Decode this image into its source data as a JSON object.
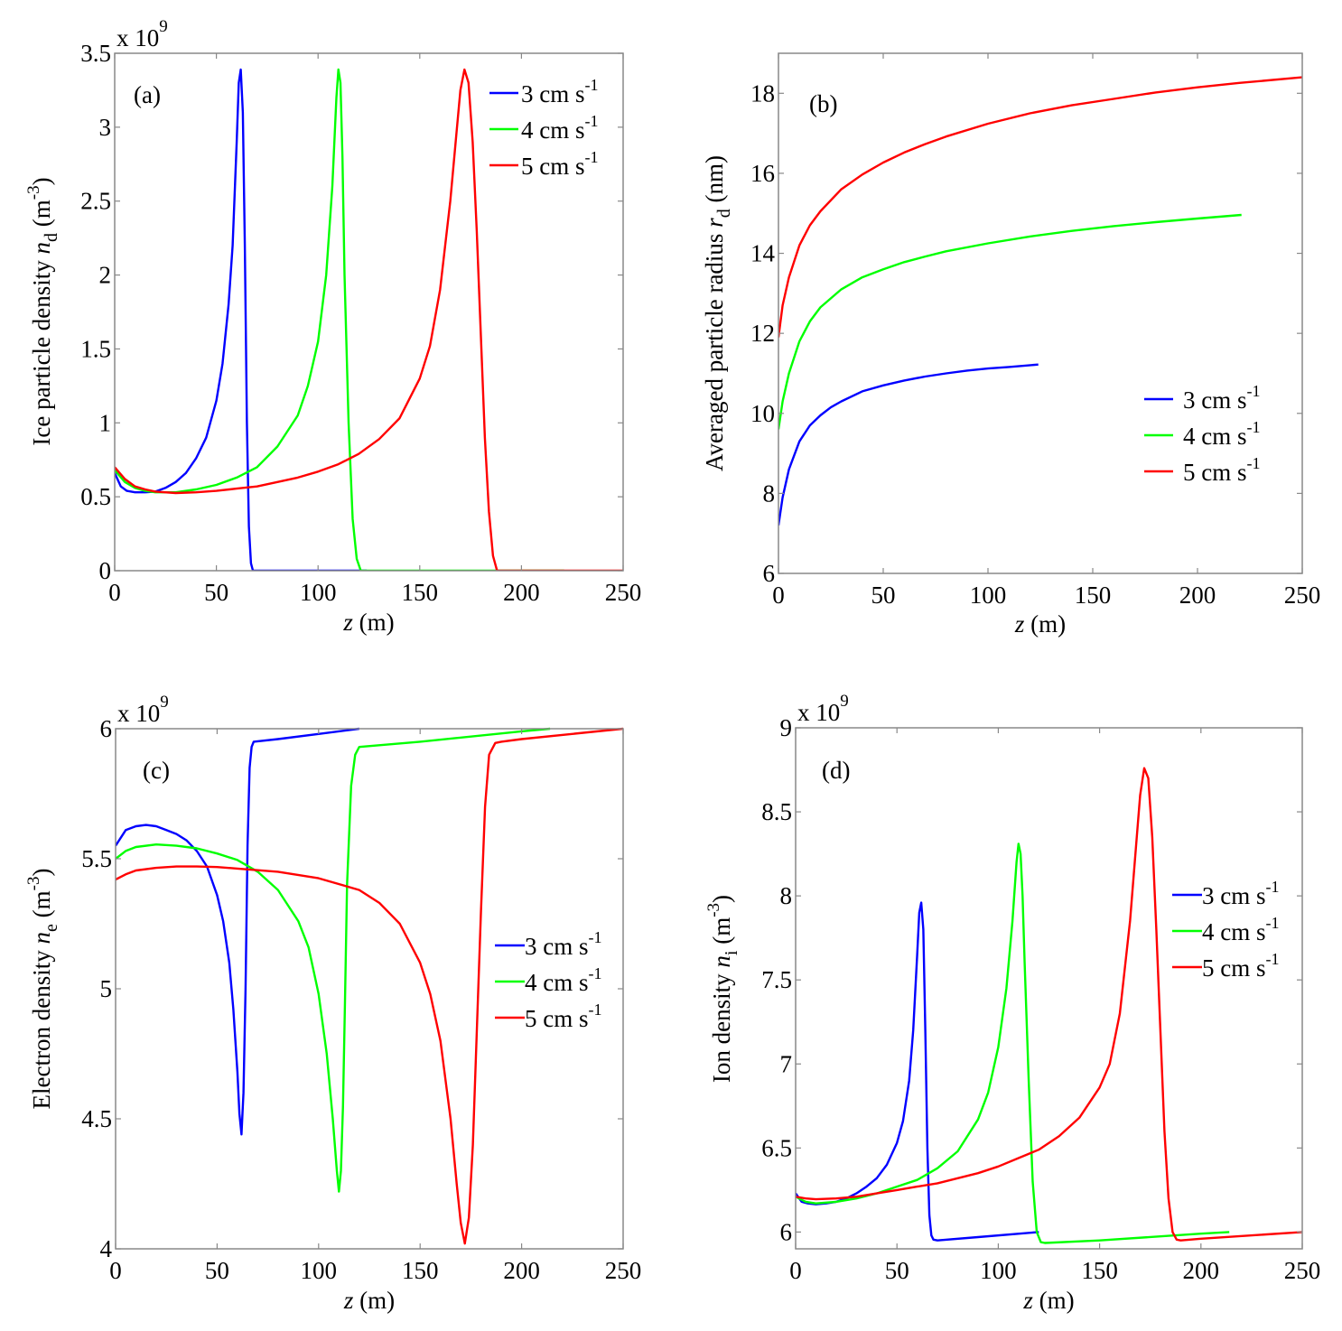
{
  "chart_data": [
    {
      "type": "line",
      "panel": "(a)",
      "title": "",
      "xlabel": "z (m)",
      "xlabel_italic": "z",
      "xlabel_rest": " (m)",
      "ylabel_parts": [
        "Ice particle density ",
        "n",
        "d",
        " (m",
        "-3",
        ")"
      ],
      "y_exponent": "x 10",
      "y_exponent_power": "9",
      "xlim": [
        0,
        250
      ],
      "ylim": [
        0,
        3.5
      ],
      "xticks": [
        0,
        50,
        100,
        150,
        200,
        250
      ],
      "yticks": [
        0,
        0.5,
        1,
        1.5,
        2,
        2.5,
        3,
        3.5
      ],
      "ytick_labels": [
        "0",
        "0.5",
        "1",
        "1.5",
        "2",
        "2.5",
        "3",
        "3.5"
      ],
      "grid": false,
      "legend_position": "top-right",
      "series": [
        {
          "name": "3 cm s-1",
          "label_main": "3 cm s",
          "label_sup": "-1",
          "color": "#0000ff",
          "x": [
            0,
            3,
            6,
            10,
            15,
            20,
            25,
            30,
            35,
            40,
            45,
            50,
            53,
            56,
            58,
            60,
            61,
            62,
            63,
            64,
            65,
            66,
            67,
            68,
            70,
            80,
            100,
            124
          ],
          "y": [
            0.66,
            0.57,
            0.54,
            0.53,
            0.53,
            0.535,
            0.56,
            0.6,
            0.66,
            0.76,
            0.9,
            1.15,
            1.4,
            1.8,
            2.2,
            2.9,
            3.3,
            3.39,
            3.1,
            2.2,
            1.0,
            0.3,
            0.05,
            0.0,
            0.0,
            0.0,
            0.0,
            0.0
          ]
        },
        {
          "name": "4 cm s-1",
          "label_main": "4 cm s",
          "label_sup": "-1",
          "color": "#00ff00",
          "x": [
            0,
            5,
            10,
            15,
            20,
            30,
            40,
            50,
            60,
            70,
            80,
            90,
            95,
            100,
            104,
            107,
            109,
            110,
            111,
            112,
            113,
            115,
            117,
            119,
            121,
            130,
            160,
            200,
            221
          ],
          "y": [
            0.68,
            0.6,
            0.56,
            0.54,
            0.53,
            0.53,
            0.55,
            0.58,
            0.63,
            0.7,
            0.84,
            1.05,
            1.25,
            1.55,
            2.0,
            2.6,
            3.2,
            3.39,
            3.3,
            2.8,
            2.0,
            1.0,
            0.35,
            0.08,
            0.0,
            0.0,
            0.0,
            0.0,
            0.0
          ]
        },
        {
          "name": "5 cm s-1",
          "label_main": "5 cm s",
          "label_sup": "-1",
          "color": "#ff0000",
          "x": [
            0,
            5,
            10,
            15,
            20,
            30,
            40,
            50,
            60,
            70,
            80,
            90,
            100,
            110,
            120,
            130,
            140,
            150,
            155,
            160,
            165,
            168,
            170,
            172,
            174,
            176,
            178,
            180,
            182,
            184,
            186,
            188,
            200,
            250
          ],
          "y": [
            0.7,
            0.62,
            0.57,
            0.55,
            0.535,
            0.525,
            0.53,
            0.54,
            0.555,
            0.57,
            0.6,
            0.63,
            0.67,
            0.72,
            0.79,
            0.89,
            1.03,
            1.3,
            1.52,
            1.9,
            2.5,
            2.95,
            3.25,
            3.39,
            3.3,
            2.9,
            2.3,
            1.6,
            0.9,
            0.4,
            0.1,
            0.0,
            0.0,
            0.0
          ]
        }
      ]
    },
    {
      "type": "line",
      "panel": "(b)",
      "title": "",
      "xlabel": "z (m)",
      "xlabel_italic": "z",
      "xlabel_rest": " (m)",
      "ylabel_parts": [
        "Averaged particle radius ",
        "r",
        "d",
        " (nm)",
        "",
        ""
      ],
      "y_exponent": "",
      "y_exponent_power": "",
      "xlim": [
        0,
        250
      ],
      "ylim": [
        6,
        19
      ],
      "xticks": [
        0,
        50,
        100,
        150,
        200,
        250
      ],
      "yticks": [
        6,
        8,
        10,
        12,
        14,
        16,
        18
      ],
      "ytick_labels": [
        "6",
        "8",
        "10",
        "12",
        "14",
        "16",
        "18"
      ],
      "grid": false,
      "legend_position": "lower-right",
      "series": [
        {
          "name": "3 cm s-1",
          "label_main": "3 cm s",
          "label_sup": "-1",
          "color": "#0000ff",
          "x": [
            0,
            2,
            5,
            10,
            15,
            20,
            25,
            30,
            40,
            50,
            60,
            70,
            80,
            90,
            100,
            110,
            124
          ],
          "y": [
            7.2,
            7.9,
            8.6,
            9.3,
            9.7,
            9.95,
            10.15,
            10.3,
            10.55,
            10.7,
            10.82,
            10.92,
            11.0,
            11.07,
            11.12,
            11.16,
            11.22
          ]
        },
        {
          "name": "4 cm s-1",
          "label_main": "4 cm s",
          "label_sup": "-1",
          "color": "#00ff00",
          "x": [
            0,
            2,
            5,
            10,
            15,
            20,
            30,
            40,
            50,
            60,
            70,
            80,
            100,
            120,
            140,
            160,
            180,
            200,
            221
          ],
          "y": [
            9.6,
            10.3,
            11.0,
            11.8,
            12.3,
            12.65,
            13.1,
            13.4,
            13.6,
            13.78,
            13.92,
            14.05,
            14.25,
            14.42,
            14.56,
            14.68,
            14.78,
            14.87,
            14.96
          ]
        },
        {
          "name": "5 cm s-1",
          "label_main": "5 cm s",
          "label_sup": "-1",
          "color": "#ff0000",
          "x": [
            0,
            2,
            5,
            10,
            15,
            20,
            30,
            40,
            50,
            60,
            70,
            80,
            100,
            120,
            140,
            160,
            180,
            200,
            220,
            250
          ],
          "y": [
            11.9,
            12.7,
            13.4,
            14.2,
            14.7,
            15.05,
            15.6,
            15.97,
            16.27,
            16.52,
            16.73,
            16.92,
            17.24,
            17.5,
            17.7,
            17.86,
            18.02,
            18.15,
            18.26,
            18.4
          ]
        }
      ]
    },
    {
      "type": "line",
      "panel": "(c)",
      "title": "",
      "xlabel": "z (m)",
      "xlabel_italic": "z",
      "xlabel_rest": " (m)",
      "ylabel_parts": [
        "Electron density ",
        "n",
        "e",
        " (m",
        "-3",
        ")"
      ],
      "y_exponent": "x 10",
      "y_exponent_power": "9",
      "xlim": [
        0,
        250
      ],
      "ylim": [
        4,
        6
      ],
      "xticks": [
        0,
        50,
        100,
        150,
        200,
        250
      ],
      "yticks": [
        4,
        4.5,
        5,
        5.5,
        6
      ],
      "ytick_labels": [
        "4",
        "4.5",
        "5",
        "5.5",
        "6"
      ],
      "grid": false,
      "legend_position": "center-right",
      "series": [
        {
          "name": "3 cm s-1",
          "label_main": "3 cm s",
          "label_sup": "-1",
          "color": "#0000ff",
          "x": [
            0,
            5,
            10,
            15,
            20,
            25,
            30,
            35,
            40,
            45,
            50,
            53,
            56,
            58,
            60,
            61,
            62,
            63,
            64,
            65,
            66,
            67,
            68,
            80,
            100,
            120
          ],
          "y": [
            5.55,
            5.61,
            5.625,
            5.63,
            5.625,
            5.61,
            5.595,
            5.57,
            5.53,
            5.47,
            5.36,
            5.26,
            5.1,
            4.92,
            4.68,
            4.52,
            4.44,
            4.6,
            5.0,
            5.55,
            5.85,
            5.93,
            5.95,
            5.96,
            5.98,
            6.0
          ]
        },
        {
          "name": "4 cm s-1",
          "label_main": "4 cm s",
          "label_sup": "-1",
          "color": "#00ff00",
          "x": [
            0,
            5,
            10,
            20,
            30,
            40,
            50,
            60,
            70,
            80,
            90,
            95,
            100,
            104,
            107,
            109,
            110,
            111,
            112,
            113,
            114,
            116,
            118,
            120,
            150,
            200,
            214
          ],
          "y": [
            5.5,
            5.53,
            5.545,
            5.555,
            5.55,
            5.54,
            5.52,
            5.495,
            5.45,
            5.38,
            5.26,
            5.16,
            4.98,
            4.75,
            4.5,
            4.3,
            4.22,
            4.3,
            4.55,
            4.95,
            5.4,
            5.78,
            5.9,
            5.93,
            5.95,
            5.99,
            6.0
          ]
        },
        {
          "name": "5 cm s-1",
          "label_main": "5 cm s",
          "label_sup": "-1",
          "color": "#ff0000",
          "x": [
            0,
            5,
            10,
            20,
            30,
            40,
            50,
            60,
            80,
            100,
            120,
            130,
            140,
            150,
            155,
            160,
            165,
            168,
            170,
            172,
            174,
            176,
            178,
            180,
            182,
            184,
            187,
            190,
            200,
            250
          ],
          "y": [
            5.42,
            5.44,
            5.455,
            5.465,
            5.47,
            5.47,
            5.468,
            5.462,
            5.45,
            5.425,
            5.38,
            5.33,
            5.25,
            5.1,
            4.98,
            4.8,
            4.5,
            4.25,
            4.1,
            4.02,
            4.12,
            4.4,
            4.85,
            5.3,
            5.7,
            5.9,
            5.945,
            5.95,
            5.96,
            6.0
          ]
        }
      ]
    },
    {
      "type": "line",
      "panel": "(d)",
      "title": "",
      "xlabel": "z (m)",
      "xlabel_italic": "z",
      "xlabel_rest": " (m)",
      "ylabel_parts": [
        "Ion density ",
        "n",
        "i",
        " (m",
        "-3",
        ")"
      ],
      "y_exponent": "x 10",
      "y_exponent_power": "9",
      "xlim": [
        0,
        250
      ],
      "ylim": [
        5.9,
        9
      ],
      "xticks": [
        0,
        50,
        100,
        150,
        200,
        250
      ],
      "yticks": [
        6,
        6.5,
        7,
        7.5,
        8,
        8.5,
        9
      ],
      "ytick_labels": [
        "6",
        "6.5",
        "7",
        "7.5",
        "8",
        "8.5",
        "9"
      ],
      "grid": false,
      "legend_position": "center-right",
      "series": [
        {
          "name": "3 cm s-1",
          "label_main": "3 cm s",
          "label_sup": "-1",
          "color": "#0000ff",
          "x": [
            0,
            3,
            6,
            10,
            15,
            20,
            25,
            30,
            35,
            40,
            45,
            50,
            53,
            56,
            58,
            60,
            61,
            62,
            63,
            64,
            65,
            66,
            67,
            68,
            70,
            90,
            120
          ],
          "y": [
            6.23,
            6.18,
            6.17,
            6.165,
            6.17,
            6.18,
            6.2,
            6.23,
            6.27,
            6.32,
            6.4,
            6.53,
            6.66,
            6.9,
            7.2,
            7.65,
            7.9,
            7.96,
            7.8,
            7.2,
            6.5,
            6.1,
            5.98,
            5.955,
            5.95,
            5.97,
            6.0
          ]
        },
        {
          "name": "4 cm s-1",
          "label_main": "4 cm s",
          "label_sup": "-1",
          "color": "#00ff00",
          "x": [
            0,
            5,
            10,
            20,
            30,
            40,
            50,
            60,
            70,
            80,
            90,
            95,
            100,
            104,
            107,
            109,
            110,
            111,
            112,
            113,
            115,
            117,
            119,
            121,
            123,
            150,
            200,
            214
          ],
          "y": [
            6.21,
            6.18,
            6.17,
            6.18,
            6.2,
            6.23,
            6.27,
            6.31,
            6.38,
            6.48,
            6.67,
            6.83,
            7.1,
            7.45,
            7.85,
            8.2,
            8.31,
            8.25,
            8.0,
            7.6,
            6.9,
            6.3,
            6.0,
            5.94,
            5.935,
            5.95,
            5.99,
            6.0
          ]
        },
        {
          "name": "5 cm s-1",
          "label_main": "5 cm s",
          "label_sup": "-1",
          "color": "#ff0000",
          "x": [
            0,
            5,
            10,
            20,
            30,
            40,
            50,
            60,
            70,
            80,
            90,
            100,
            110,
            120,
            130,
            140,
            150,
            155,
            160,
            165,
            168,
            170,
            172,
            174,
            176,
            178,
            180,
            182,
            184,
            186,
            188,
            190,
            200,
            250
          ],
          "y": [
            6.21,
            6.2,
            6.195,
            6.2,
            6.21,
            6.23,
            6.25,
            6.27,
            6.29,
            6.32,
            6.35,
            6.39,
            6.44,
            6.49,
            6.57,
            6.68,
            6.86,
            7.0,
            7.3,
            7.85,
            8.3,
            8.6,
            8.76,
            8.7,
            8.35,
            7.8,
            7.2,
            6.6,
            6.2,
            6.0,
            5.955,
            5.95,
            5.96,
            6.0
          ]
        }
      ]
    }
  ]
}
